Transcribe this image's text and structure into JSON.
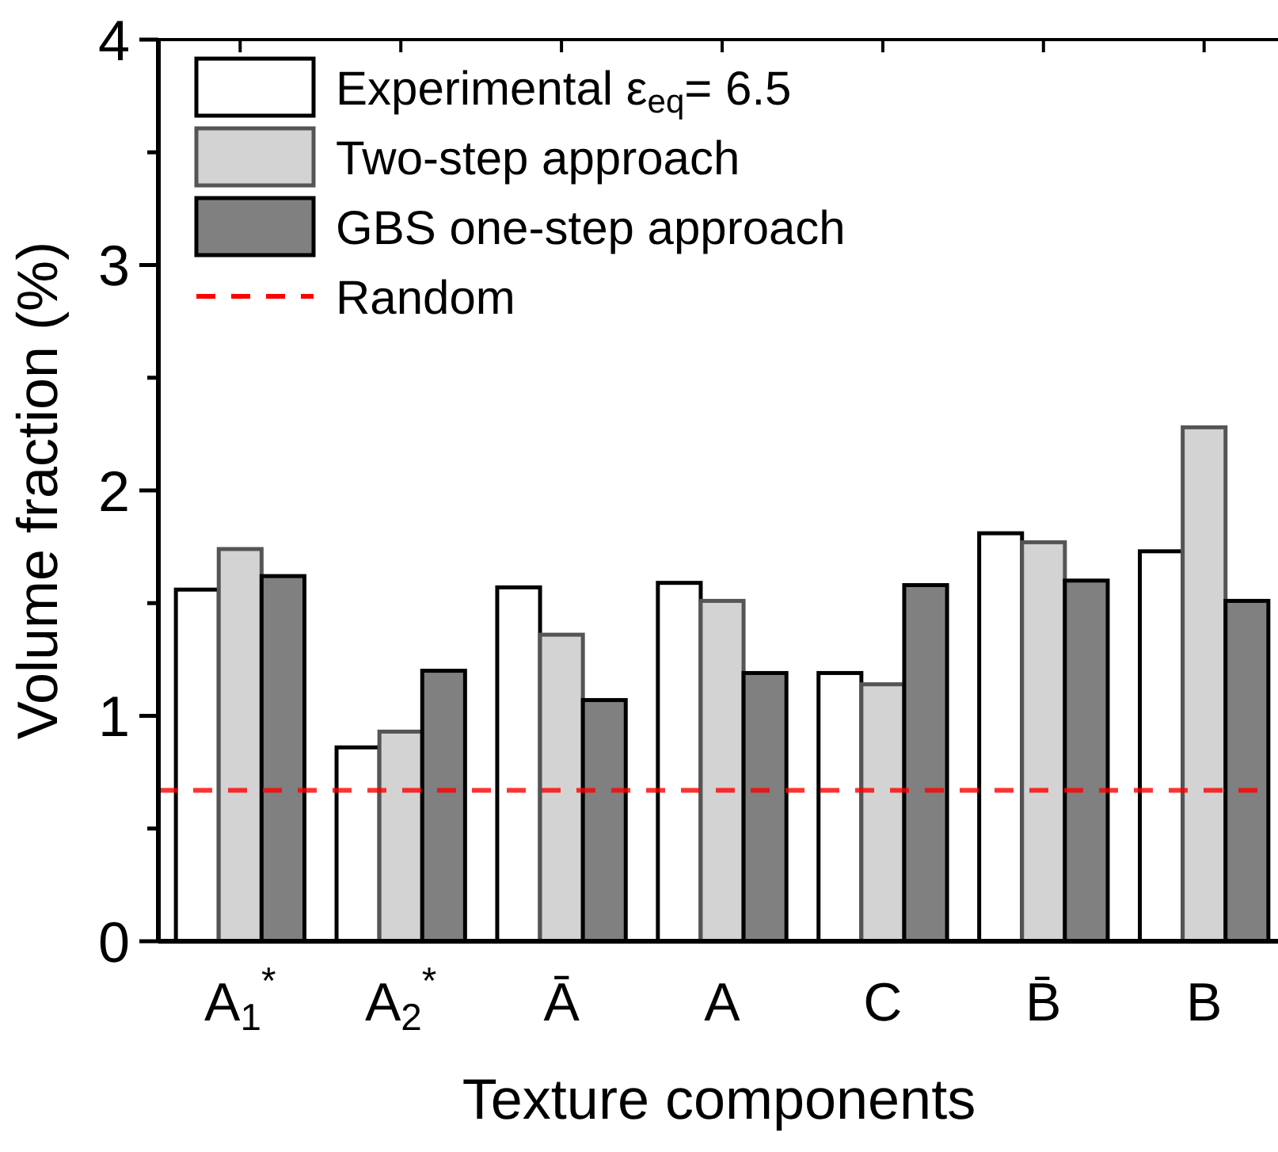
{
  "chart_data": {
    "type": "bar",
    "xlabel": "Texture components",
    "ylabel": "Volume fraction (%)",
    "categories": [
      "A$_{1}$$^{*}$",
      "A$_{2}$$^{*}$",
      "Ā",
      "A",
      "C",
      "B̄",
      "B"
    ],
    "series": [
      {
        "name": "Experimental ε$_{eq}$= 6.5",
        "color": "#ffffff",
        "values": [
          1.56,
          0.86,
          1.57,
          1.59,
          1.19,
          1.81,
          1.73
        ]
      },
      {
        "name": "Two-step approach",
        "color": "#d3d3d3",
        "values": [
          1.74,
          0.93,
          1.36,
          1.51,
          1.14,
          1.77,
          2.28
        ]
      },
      {
        "name": "GBS one-step approach",
        "color": "#808080",
        "values": [
          1.62,
          1.2,
          1.07,
          1.19,
          1.58,
          1.6,
          1.51
        ]
      }
    ],
    "ylim": [
      0,
      4
    ],
    "yticks": [
      0,
      {
        "value": 0.5,
        "label": null
      },
      1,
      {
        "value": 1.5,
        "label": null
      },
      2,
      {
        "value": 2.5,
        "label": null
      },
      3,
      {
        "value": 3.5,
        "label": null
      },
      4
    ],
    "ref_lines": [
      {
        "axis": "y",
        "value": 0.67,
        "label": "Random",
        "color": "#ff0000",
        "line_style": "dashed"
      }
    ],
    "legend": "top left",
    "grid": false
  }
}
